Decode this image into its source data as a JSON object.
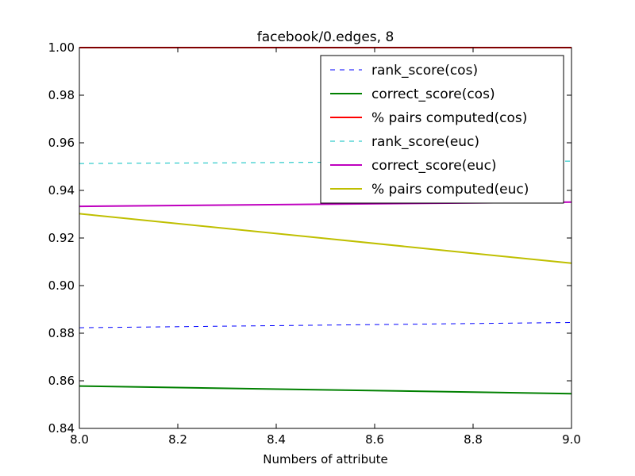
{
  "chart_data": {
    "type": "line",
    "title": "facebook/0.edges, 8",
    "xlabel": "Numbers of attribute",
    "ylabel": "",
    "xlim": [
      8.0,
      9.0
    ],
    "ylim": [
      0.84,
      1.0
    ],
    "xticks": [
      "8.0",
      "8.2",
      "8.4",
      "8.6",
      "8.8",
      "9.0"
    ],
    "yticks": [
      "0.84",
      "0.86",
      "0.88",
      "0.90",
      "0.92",
      "0.94",
      "0.96",
      "0.98",
      "1.00"
    ],
    "x": [
      8,
      9
    ],
    "legend_position": "top-right",
    "series": [
      {
        "name": "rank_score(cos)",
        "values": [
          0.8823,
          0.8845
        ],
        "color": "#0000ff",
        "style": "dashed"
      },
      {
        "name": "correct_score(cos)",
        "values": [
          0.8578,
          0.8546
        ],
        "color": "#008000",
        "style": "solid"
      },
      {
        "name": "% pairs computed(cos)",
        "values": [
          1.0,
          1.0
        ],
        "color": "#ff0000",
        "style": "solid"
      },
      {
        "name": "rank_score(euc)",
        "values": [
          0.9513,
          0.9523
        ],
        "color": "#00bfbf",
        "style": "dashed"
      },
      {
        "name": "correct_score(euc)",
        "values": [
          0.9333,
          0.9351
        ],
        "color": "#bf00bf",
        "style": "solid"
      },
      {
        "name": "% pairs computed(euc)",
        "values": [
          0.9302,
          0.9094
        ],
        "color": "#bfbf00",
        "style": "solid"
      }
    ]
  }
}
